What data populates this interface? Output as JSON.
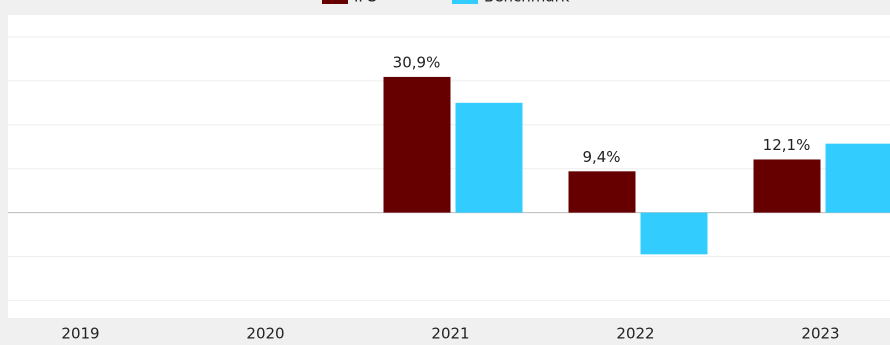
{
  "chart_data": {
    "type": "bar",
    "categories": [
      "2019",
      "2020",
      "2021",
      "2022",
      "2023"
    ],
    "series": [
      {
        "name": "IPS",
        "color": "#660000",
        "values": [
          null,
          null,
          30.9,
          9.4,
          12.1
        ],
        "value_labels": [
          null,
          null,
          "30,9%",
          "9,4%",
          "12,1%"
        ]
      },
      {
        "name": "Benchmark",
        "color": "#33ccff",
        "values": [
          null,
          null,
          25.0,
          -9.5,
          15.7
        ]
      }
    ],
    "ylim": [
      -24,
      45
    ],
    "yticks": [
      -20,
      -10,
      0,
      10,
      20,
      30,
      40
    ],
    "grid": true,
    "legend": "top"
  }
}
